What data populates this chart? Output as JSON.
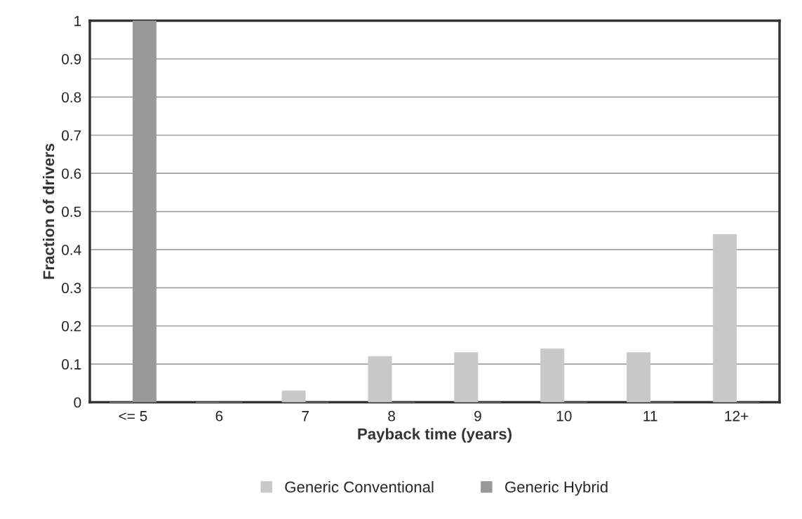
{
  "chart_data": {
    "type": "bar",
    "xlabel": "Payback time (years)",
    "ylabel": "Fraction of drivers",
    "categories": [
      "<= 5",
      "6",
      "7",
      "8",
      "9",
      "10",
      "11",
      "12+"
    ],
    "series": [
      {
        "name": "Generic Conventional",
        "color": "#c8c8c8",
        "values": [
          0,
          0,
          0.03,
          0.12,
          0.13,
          0.14,
          0.13,
          0.44
        ]
      },
      {
        "name": "Generic Hybrid",
        "color": "#999999",
        "values": [
          1,
          0,
          0,
          0,
          0,
          0,
          0,
          0
        ]
      }
    ],
    "ylim": [
      0,
      1
    ],
    "yticks": [
      0,
      0.1,
      0.2,
      0.3,
      0.4,
      0.5,
      0.6,
      0.7,
      0.8,
      0.9,
      1
    ],
    "grid": "y",
    "legend": "bottom"
  }
}
